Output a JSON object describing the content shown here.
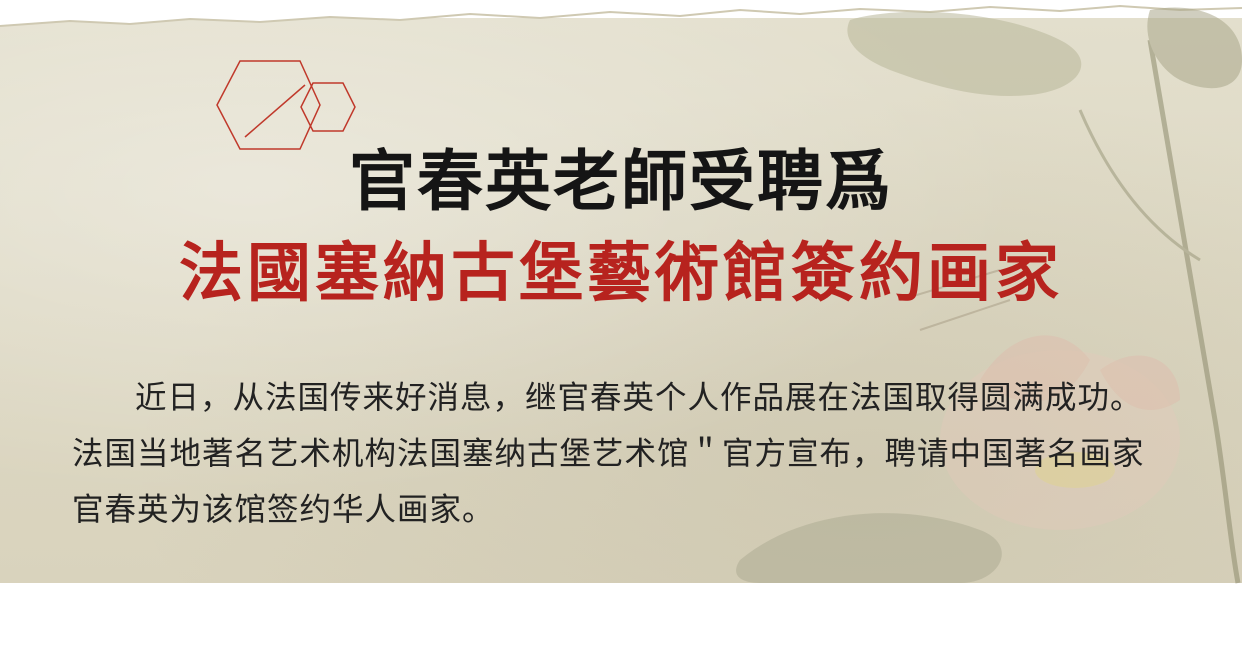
{
  "headline": {
    "line1": "官春英老師受聘爲",
    "line2": "法國塞納古堡藝術館簽約画家"
  },
  "article": {
    "paragraph": "近日，从法国传来好消息，继官春英个人作品展在法国取得圆满成功。法国当地著名艺术机构法国塞纳古堡艺术馆＂官方宣布，聘请中国著名画家官春英为该馆签约华人画家。"
  },
  "decor": {
    "ornament": "red-hexagon-outline",
    "painting": "lotus-ink-painting",
    "colors": {
      "paper": "#ddd8c3",
      "title_black": "#151515",
      "title_red": "#b7231e",
      "ornament_red": "#c0392b",
      "body_text": "#222222"
    }
  }
}
